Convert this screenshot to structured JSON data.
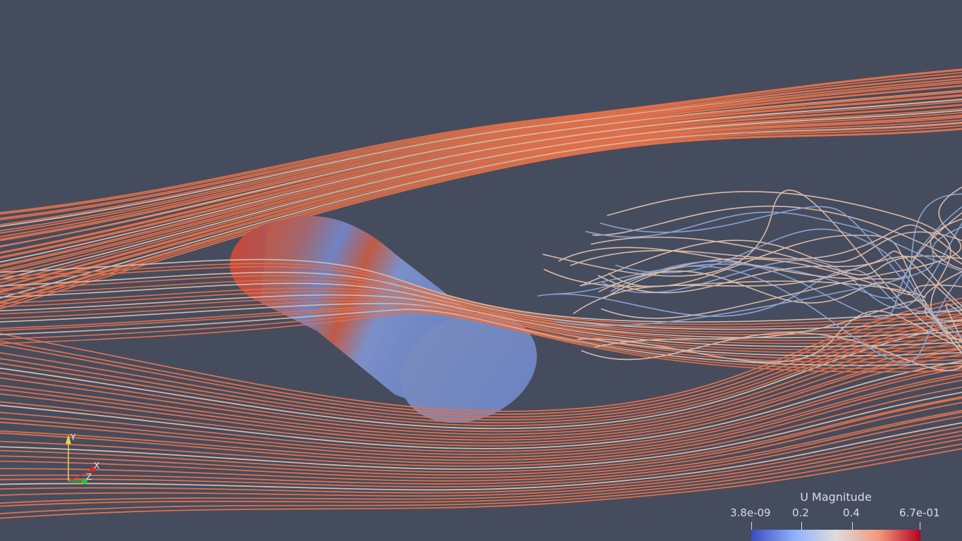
{
  "legend": {
    "title": "U Magnitude",
    "ticks": [
      "3.8e-09",
      "0.2",
      "0.4",
      "6.7e-01"
    ],
    "range": [
      3.8e-09,
      0.67
    ],
    "colormap": [
      "#3b4cc0",
      "#8db0fe",
      "#dddddd",
      "#f49a7b",
      "#b40426"
    ]
  },
  "orientation_axes": {
    "y_label": "Y",
    "x_label": "X",
    "z_label": "Z",
    "y_color": "#e6d84c",
    "x_color": "#d42a2a",
    "z_color": "#27c43a"
  },
  "colors": {
    "background": "#454c5e",
    "fast_stream": "#e0704a",
    "mid_stream": "#d9b9a6",
    "slow_stream": "#8aa3cf",
    "body_low": "#6e84c4",
    "body_high": "#c8553d"
  }
}
